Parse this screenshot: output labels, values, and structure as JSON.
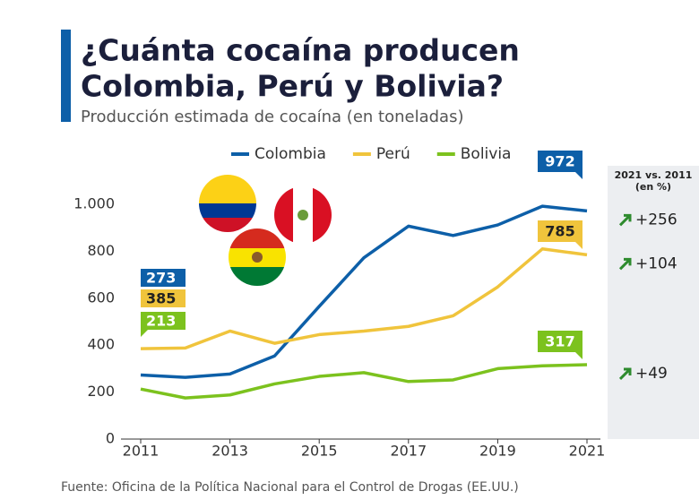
{
  "chart_data": {
    "type": "line",
    "title": [
      "¿Cuánta cocaína producen",
      "Colombia, Perú y Bolivia?"
    ],
    "subtitle": "Producción estimada de cocaína (en toneladas)",
    "x": [
      2011,
      2012,
      2013,
      2014,
      2015,
      2016,
      2017,
      2018,
      2019,
      2020,
      2021
    ],
    "xlim": [
      2011,
      2021
    ],
    "xticks": [
      2011,
      2013,
      2015,
      2017,
      2019,
      2021
    ],
    "ylim": [
      0,
      1000
    ],
    "yticks": [
      0,
      200,
      400,
      600,
      800,
      {
        "value": 1000,
        "label": "1.000"
      }
    ],
    "grid": false,
    "series": [
      {
        "name": "Colombia",
        "color": "#0d5fa8",
        "values": [
          273,
          263,
          277,
          354,
          565,
          772,
          907,
          867,
          912,
          992,
          972
        ],
        "change": "+256"
      },
      {
        "name": "Perú",
        "color": "#f0c43c",
        "values": [
          385,
          388,
          460,
          408,
          445,
          460,
          480,
          525,
          648,
          810,
          785
        ],
        "change": "+104"
      },
      {
        "name": "Bolivia",
        "color": "#7cc21e",
        "values": [
          213,
          175,
          188,
          235,
          267,
          283,
          245,
          252,
          300,
          312,
          317
        ],
        "change": "+49"
      }
    ],
    "change_title": [
      "2021 vs. 2011",
      "(en %)"
    ],
    "source": "Fuente: Oficina de la Política Nacional para el Control de Drogas (EE.UU.)"
  }
}
